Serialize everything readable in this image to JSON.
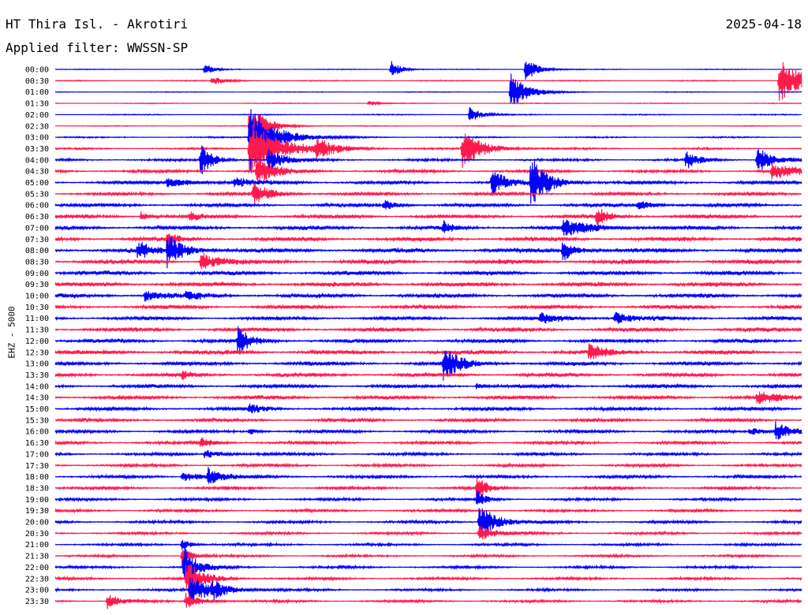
{
  "header": {
    "station": "HT Thira Isl. - Akrotiri",
    "date": "2025-04-18",
    "filter": "Applied filter: WWSSN-SP"
  },
  "chart_data": {
    "type": "line",
    "title": "HT Thira Isl. - Akrotiri",
    "ylabel": "EHZ - 5000",
    "colors": [
      "#0000ff",
      "#ff1a4d"
    ],
    "grid": false,
    "row_labels": [
      "00:00",
      "00:30",
      "01:00",
      "01:30",
      "02:00",
      "02:30",
      "03:00",
      "03:30",
      "04:00",
      "04:30",
      "05:00",
      "05:30",
      "06:00",
      "06:30",
      "07:00",
      "07:30",
      "08:00",
      "08:30",
      "09:00",
      "09:30",
      "10:00",
      "10:30",
      "11:00",
      "11:30",
      "12:00",
      "12:30",
      "13:00",
      "13:30",
      "14:00",
      "14:30",
      "15:00",
      "15:30",
      "16:00",
      "16:30",
      "17:00",
      "17:30",
      "18:00",
      "18:30",
      "19:00",
      "19:30",
      "20:00",
      "20:30",
      "21:00",
      "21:30",
      "22:00",
      "22:30",
      "23:00",
      "23:30"
    ],
    "noise_levels": [
      0.4,
      0.5,
      0.4,
      0.4,
      0.5,
      0.4,
      0.7,
      0.9,
      1.2,
      1.6,
      1.8,
      1.7,
      1.9,
      2.0,
      2.0,
      2.1,
      2.3,
      2.4,
      2.2,
      2.3,
      2.2,
      2.0,
      1.9,
      2.1,
      2.0,
      2.2,
      2.0,
      2.0,
      1.9,
      2.0,
      1.8,
      1.7,
      1.7,
      1.6,
      1.5,
      1.5,
      1.6,
      1.5,
      1.4,
      1.4,
      1.4,
      1.3,
      1.3,
      1.2,
      1.3,
      1.3,
      1.2,
      1.2
    ],
    "events": [
      {
        "row": 0,
        "t": 0.2,
        "amp": 8,
        "dur": 0.01
      },
      {
        "row": 0,
        "t": 0.45,
        "amp": 12,
        "dur": 0.012
      },
      {
        "row": 0,
        "t": 0.63,
        "amp": 16,
        "dur": 0.015
      },
      {
        "row": 1,
        "t": 0.21,
        "amp": 5,
        "dur": 0.02
      },
      {
        "row": 1,
        "t": 0.97,
        "amp": 28,
        "dur": 0.03
      },
      {
        "row": 2,
        "t": 0.61,
        "amp": 25,
        "dur": 0.02
      },
      {
        "row": 3,
        "t": 0.42,
        "amp": 4,
        "dur": 0.01
      },
      {
        "row": 4,
        "t": 0.555,
        "amp": 10,
        "dur": 0.015
      },
      {
        "row": 5,
        "t": 0.26,
        "amp": 30,
        "dur": 0.02
      },
      {
        "row": 6,
        "t": 0.26,
        "amp": 45,
        "dur": 0.03
      },
      {
        "row": 7,
        "t": 0.26,
        "amp": 35,
        "dur": 0.04
      },
      {
        "row": 7,
        "t": 0.35,
        "amp": 12,
        "dur": 0.02
      },
      {
        "row": 7,
        "t": 0.545,
        "amp": 25,
        "dur": 0.025
      },
      {
        "row": 8,
        "t": 0.195,
        "amp": 20,
        "dur": 0.015
      },
      {
        "row": 8,
        "t": 0.285,
        "amp": 15,
        "dur": 0.02
      },
      {
        "row": 8,
        "t": 0.845,
        "amp": 12,
        "dur": 0.015
      },
      {
        "row": 8,
        "t": 0.94,
        "amp": 18,
        "dur": 0.02
      },
      {
        "row": 9,
        "t": 0.27,
        "amp": 20,
        "dur": 0.02
      },
      {
        "row": 9,
        "t": 0.96,
        "amp": 10,
        "dur": 0.03
      },
      {
        "row": 10,
        "t": 0.585,
        "amp": 18,
        "dur": 0.015
      },
      {
        "row": 10,
        "t": 0.637,
        "amp": 35,
        "dur": 0.02
      },
      {
        "row": 10,
        "t": 0.15,
        "amp": 6,
        "dur": 0.03
      },
      {
        "row": 10,
        "t": 0.24,
        "amp": 6,
        "dur": 0.02
      },
      {
        "row": 11,
        "t": 0.265,
        "amp": 15,
        "dur": 0.02
      },
      {
        "row": 12,
        "t": 0.44,
        "amp": 6,
        "dur": 0.015
      },
      {
        "row": 12,
        "t": 0.78,
        "amp": 6,
        "dur": 0.02
      },
      {
        "row": 13,
        "t": 0.725,
        "amp": 12,
        "dur": 0.015
      },
      {
        "row": 13,
        "t": 0.115,
        "amp": 6,
        "dur": 0.01
      },
      {
        "row": 13,
        "t": 0.18,
        "amp": 6,
        "dur": 0.01
      },
      {
        "row": 14,
        "t": 0.52,
        "amp": 8,
        "dur": 0.01
      },
      {
        "row": 14,
        "t": 0.68,
        "amp": 10,
        "dur": 0.04
      },
      {
        "row": 15,
        "t": 0.15,
        "amp": 12,
        "dur": 0.01
      },
      {
        "row": 16,
        "t": 0.11,
        "amp": 12,
        "dur": 0.015
      },
      {
        "row": 16,
        "t": 0.15,
        "amp": 20,
        "dur": 0.02
      },
      {
        "row": 16,
        "t": 0.68,
        "amp": 15,
        "dur": 0.015
      },
      {
        "row": 17,
        "t": 0.195,
        "amp": 12,
        "dur": 0.02
      },
      {
        "row": 20,
        "t": 0.12,
        "amp": 8,
        "dur": 0.02
      },
      {
        "row": 20,
        "t": 0.175,
        "amp": 6,
        "dur": 0.015
      },
      {
        "row": 22,
        "t": 0.65,
        "amp": 6,
        "dur": 0.03
      },
      {
        "row": 22,
        "t": 0.75,
        "amp": 8,
        "dur": 0.02
      },
      {
        "row": 24,
        "t": 0.245,
        "amp": 18,
        "dur": 0.015
      },
      {
        "row": 25,
        "t": 0.715,
        "amp": 10,
        "dur": 0.02
      },
      {
        "row": 26,
        "t": 0.52,
        "amp": 22,
        "dur": 0.02
      },
      {
        "row": 27,
        "t": 0.17,
        "amp": 5,
        "dur": 0.01
      },
      {
        "row": 28,
        "t": 0.565,
        "amp": 5,
        "dur": 0.01
      },
      {
        "row": 29,
        "t": 0.94,
        "amp": 8,
        "dur": 0.025
      },
      {
        "row": 30,
        "t": 0.26,
        "amp": 6,
        "dur": 0.015
      },
      {
        "row": 32,
        "t": 0.26,
        "amp": 5,
        "dur": 0.01
      },
      {
        "row": 32,
        "t": 0.965,
        "amp": 12,
        "dur": 0.02
      },
      {
        "row": 32,
        "t": 0.93,
        "amp": 5,
        "dur": 0.02
      },
      {
        "row": 33,
        "t": 0.195,
        "amp": 6,
        "dur": 0.015
      },
      {
        "row": 34,
        "t": 0.2,
        "amp": 6,
        "dur": 0.02
      },
      {
        "row": 36,
        "t": 0.17,
        "amp": 6,
        "dur": 0.03
      },
      {
        "row": 36,
        "t": 0.205,
        "amp": 10,
        "dur": 0.015
      },
      {
        "row": 37,
        "t": 0.565,
        "amp": 20,
        "dur": 0.01
      },
      {
        "row": 38,
        "t": 0.565,
        "amp": 12,
        "dur": 0.01
      },
      {
        "row": 40,
        "t": 0.568,
        "amp": 25,
        "dur": 0.02
      },
      {
        "row": 41,
        "t": 0.568,
        "amp": 10,
        "dur": 0.02
      },
      {
        "row": 42,
        "t": 0.17,
        "amp": 8,
        "dur": 0.01
      },
      {
        "row": 43,
        "t": 0.17,
        "amp": 15,
        "dur": 0.01
      },
      {
        "row": 44,
        "t": 0.172,
        "amp": 30,
        "dur": 0.015
      },
      {
        "row": 45,
        "t": 0.175,
        "amp": 25,
        "dur": 0.02
      },
      {
        "row": 46,
        "t": 0.18,
        "amp": 18,
        "dur": 0.03
      },
      {
        "row": 46,
        "t": 0.21,
        "amp": 8,
        "dur": 0.015
      },
      {
        "row": 47,
        "t": 0.07,
        "amp": 10,
        "dur": 0.015
      },
      {
        "row": 47,
        "t": 0.175,
        "amp": 10,
        "dur": 0.02
      }
    ]
  }
}
